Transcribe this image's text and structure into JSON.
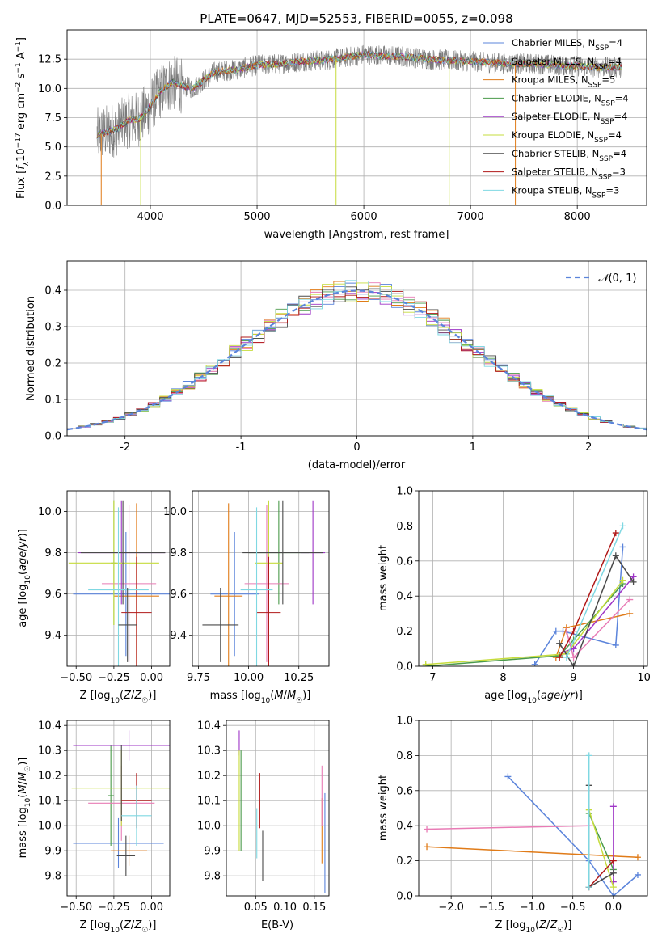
{
  "figure_title": "PLATE=0647, MJD=52553, FIBERID=0055, z=0.098",
  "colors": {
    "blue": "#5b84db",
    "orange": "#e07b18",
    "green": "#4a9a4a",
    "pink": "#e87bb5",
    "purple": "#9e35c6",
    "lime": "#c6dc3c",
    "dark": "#4a4a4a",
    "red": "#b01818",
    "cyan": "#7fd8e2",
    "gray": "#7a7a7a"
  },
  "chart_data": [
    {
      "id": "spectrum",
      "type": "line",
      "title": "PLATE=0647, MJD=52553, FIBERID=0055, z=0.098",
      "xlabel": "wavelength [Angstrom, rest frame]",
      "ylabel": "Flux [f_λ 10^-17 erg cm^-2 s^-1 A^-1]",
      "xlim": [
        3220,
        8650
      ],
      "ylim": [
        0,
        15
      ],
      "xticks": [
        4000,
        5000,
        6000,
        7000,
        8000
      ],
      "yticks": [
        0.0,
        2.5,
        5.0,
        7.5,
        10.0,
        12.5
      ],
      "data_continuum": {
        "x": [
          3500,
          3600,
          3700,
          3800,
          3900,
          4000,
          4100,
          4200,
          4300,
          4400,
          4600,
          4800,
          5000,
          5200,
          5400,
          5600,
          5800,
          6000,
          6200,
          6400,
          6600,
          6800,
          7000,
          7200,
          7400,
          7600,
          7800,
          8000,
          8200,
          8400
        ],
        "y": [
          6.0,
          6.3,
          6.6,
          7.3,
          7.4,
          8.5,
          9.8,
          10.5,
          10.2,
          10.0,
          11.4,
          11.6,
          12.0,
          12.1,
          12.3,
          12.4,
          12.6,
          12.9,
          12.8,
          12.7,
          12.5,
          12.4,
          12.3,
          12.2,
          12.1,
          12.1,
          12.0,
          11.9,
          11.8,
          11.8
        ]
      },
      "series": [
        {
          "name": "Chabrier MILES, N_SSP=4",
          "color": "#5b84db"
        },
        {
          "name": "Salpeter MILES, N_SSP=4",
          "color": "#e07b18"
        },
        {
          "name": "Kroupa MILES, N_SSP=5",
          "color": "#e07b18"
        },
        {
          "name": "Chabrier ELODIE, N_SSP=4",
          "color": "#4a9a4a"
        },
        {
          "name": "Salpeter ELODIE, N_SSP=4",
          "color": "#9e35c6"
        },
        {
          "name": "Kroupa ELODIE, N_SSP=4",
          "color": "#c6dc3c"
        },
        {
          "name": "Chabrier STELIB, N_SSP=4",
          "color": "#4a4a4a"
        },
        {
          "name": "Salpeter STELIB, N_SSP=3",
          "color": "#b01818"
        },
        {
          "name": "Kroupa STELIB, N_SSP=3",
          "color": "#7fd8e2"
        }
      ]
    },
    {
      "id": "residuals",
      "type": "bar",
      "xlabel": "(data-model)/error",
      "ylabel": "Normed distribution",
      "xlim": [
        -2.5,
        2.5
      ],
      "ylim": [
        0,
        0.48
      ],
      "xticks": [
        -2,
        -1,
        0,
        1,
        2
      ],
      "yticks": [
        0.0,
        0.1,
        0.2,
        0.3,
        0.4
      ],
      "legend": "𝒩(0,1)",
      "legend_position": "top-right",
      "bin_width": 0.1,
      "bin_start": -2.5,
      "reference_curve": "normal(0,1)"
    },
    {
      "id": "age_vs_Z",
      "type": "scatter",
      "xlabel": "Z [log10(Z/Z☉)]",
      "ylabel": "age  [log10(age/yr)]",
      "xlim": [
        -0.56,
        0.12
      ],
      "ylim": [
        9.25,
        10.1
      ],
      "xticks": [
        -0.5,
        -0.25,
        0.0
      ],
      "xticklabels": [
        "−0.50",
        "−0.25",
        "0.00"
      ],
      "yticks": [
        9.4,
        9.6,
        9.8,
        10.0
      ],
      "points": [
        {
          "color": "#5b84db",
          "x": -0.17,
          "xerr": 0.35,
          "y": 9.6,
          "yerr": 0.3
        },
        {
          "color": "#e07b18",
          "x": -0.1,
          "xerr": 0.15,
          "y": 9.59,
          "yerr": 0.45
        },
        {
          "color": "#4a9a4a",
          "x": -0.25,
          "xerr": 0.02,
          "y": 9.75,
          "yerr": 0.3
        },
        {
          "color": "#e87bb5",
          "x": -0.15,
          "xerr": 0.18,
          "y": 9.65,
          "yerr": 0.38
        },
        {
          "color": "#9e35c6",
          "x": -0.2,
          "xerr": 0.29,
          "y": 9.8,
          "yerr": 0.25
        },
        {
          "color": "#c6dc3c",
          "x": -0.25,
          "xerr": 0.3,
          "y": 9.75,
          "yerr": 0.3
        },
        {
          "color": "#4a4a4a",
          "x": -0.19,
          "xerr": 0.28,
          "y": 9.8,
          "yerr": 0.25
        },
        {
          "color": "#b01818",
          "x": -0.1,
          "xerr": 0.1,
          "y": 9.51,
          "yerr": 0.27
        },
        {
          "color": "#7fd8e2",
          "x": -0.22,
          "xerr": 0.2,
          "y": 9.62,
          "yerr": 0.4
        },
        {
          "color": "#4a4a4a",
          "x": -0.16,
          "xerr": 0.06,
          "y": 9.45,
          "yerr": 0.18
        }
      ]
    },
    {
      "id": "age_vs_mass",
      "type": "scatter",
      "xlabel": "mass [log10(M/M☉)]",
      "ylabel": "",
      "xlim": [
        9.72,
        10.4
      ],
      "ylim": [
        9.25,
        10.1
      ],
      "xticks": [
        9.75,
        10.0,
        10.25
      ],
      "xticklabels": [
        "9.75",
        "10.00",
        "10.25"
      ],
      "yticks": [
        9.4,
        9.6,
        9.8,
        10.0
      ],
      "points": [
        {
          "color": "#5b84db",
          "x": 9.93,
          "xerr": 0.12,
          "y": 9.6,
          "yerr": 0.3
        },
        {
          "color": "#e07b18",
          "x": 9.9,
          "xerr": 0.07,
          "y": 9.59,
          "yerr": 0.45
        },
        {
          "color": "#4a9a4a",
          "x": 10.15,
          "xerr": 0.15,
          "y": 9.8,
          "yerr": 0.25
        },
        {
          "color": "#e87bb5",
          "x": 10.09,
          "xerr": 0.11,
          "y": 9.65,
          "yerr": 0.38
        },
        {
          "color": "#9e35c6",
          "x": 10.32,
          "xerr": 0.06,
          "y": 9.8,
          "yerr": 0.25
        },
        {
          "color": "#c6dc3c",
          "x": 10.1,
          "xerr": 0.07,
          "y": 9.75,
          "yerr": 0.3
        },
        {
          "color": "#4a4a4a",
          "x": 10.17,
          "xerr": 0.2,
          "y": 9.8,
          "yerr": 0.25
        },
        {
          "color": "#b01818",
          "x": 10.1,
          "xerr": 0.06,
          "y": 9.51,
          "yerr": 0.27
        },
        {
          "color": "#7fd8e2",
          "x": 10.04,
          "xerr": 0.08,
          "y": 9.62,
          "yerr": 0.4
        },
        {
          "color": "#4a4a4a",
          "x": 9.86,
          "xerr": 0.09,
          "y": 9.45,
          "yerr": 0.18
        }
      ]
    },
    {
      "id": "mass_weight_vs_age",
      "type": "line",
      "xlabel": "age  [log10(age/yr)]",
      "ylabel": "mass weight",
      "xlim": [
        6.8,
        10.05
      ],
      "ylim": [
        0,
        1.0
      ],
      "xticks": [
        7,
        8,
        9,
        10
      ],
      "yticks": [
        0.0,
        0.2,
        0.4,
        0.6,
        0.8,
        1.0
      ],
      "series": [
        {
          "color": "#5b84db",
          "x": [
            8.45,
            8.75,
            8.85,
            9.6,
            9.7
          ],
          "y": [
            0.01,
            0.2,
            0.2,
            0.12,
            0.68
          ]
        },
        {
          "color": "#e07b18",
          "x": [
            8.75,
            8.9,
            9.8
          ],
          "y": [
            0.05,
            0.22,
            0.3
          ]
        },
        {
          "color": "#4a9a4a",
          "x": [
            6.9,
            8.8,
            9.0,
            9.7
          ],
          "y": [
            0.0,
            0.06,
            0.15,
            0.47
          ]
        },
        {
          "color": "#e87bb5",
          "x": [
            8.9,
            9.0,
            9.8
          ],
          "y": [
            0.2,
            0.05,
            0.38
          ]
        },
        {
          "color": "#9e35c6",
          "x": [
            8.85,
            9.0,
            9.85
          ],
          "y": [
            0.08,
            0.1,
            0.51
          ]
        },
        {
          "color": "#c6dc3c",
          "x": [
            6.9,
            8.9,
            9.7
          ],
          "y": [
            0.01,
            0.07,
            0.49
          ]
        },
        {
          "color": "#4a4a4a",
          "x": [
            8.8,
            9.0,
            9.6,
            9.85
          ],
          "y": [
            0.13,
            0.0,
            0.63,
            0.48
          ]
        },
        {
          "color": "#b01818",
          "x": [
            8.8,
            9.0,
            9.6
          ],
          "y": [
            0.05,
            0.2,
            0.76
          ]
        },
        {
          "color": "#7fd8e2",
          "x": [
            8.9,
            9.7
          ],
          "y": [
            0.05,
            0.8
          ]
        }
      ]
    },
    {
      "id": "mass_vs_Z",
      "type": "scatter",
      "xlabel": "Z [log10(Z/Z☉)]",
      "ylabel": "mass [log10(M/M☉)]",
      "xlim": [
        -0.56,
        0.12
      ],
      "ylim": [
        9.72,
        10.42
      ],
      "xticks": [
        -0.5,
        -0.25,
        0.0
      ],
      "xticklabels": [
        "−0.50",
        "−0.25",
        "0.00"
      ],
      "yticks": [
        9.8,
        9.9,
        10.0,
        10.1,
        10.2,
        10.3,
        10.4
      ],
      "points": [
        {
          "color": "#5b84db",
          "x": -0.22,
          "xerr": 0.3,
          "y": 9.93,
          "yerr": 0.1
        },
        {
          "color": "#e07b18",
          "x": -0.15,
          "xerr": 0.12,
          "y": 9.9,
          "yerr": 0.06
        },
        {
          "color": "#4a9a4a",
          "x": -0.27,
          "xerr": 0.02,
          "y": 10.12,
          "yerr": 0.2
        },
        {
          "color": "#e87bb5",
          "x": -0.2,
          "xerr": 0.22,
          "y": 10.09,
          "yerr": 0.15
        },
        {
          "color": "#9e35c6",
          "x": -0.15,
          "xerr": 0.37,
          "y": 10.32,
          "yerr": 0.06
        },
        {
          "color": "#c6dc3c",
          "x": -0.2,
          "xerr": 0.33,
          "y": 10.15,
          "yerr": 0.15
        },
        {
          "color": "#4a4a4a",
          "x": -0.2,
          "xerr": 0.28,
          "y": 10.17,
          "yerr": 0.15
        },
        {
          "color": "#b01818",
          "x": -0.1,
          "xerr": 0.1,
          "y": 10.1,
          "yerr": 0.11
        },
        {
          "color": "#7fd8e2",
          "x": -0.1,
          "xerr": 0.1,
          "y": 10.04,
          "yerr": 0.12
        },
        {
          "color": "#4a4a4a",
          "x": -0.17,
          "xerr": 0.06,
          "y": 9.88,
          "yerr": 0.08
        }
      ]
    },
    {
      "id": "mass_vs_ebv",
      "type": "scatter",
      "xlabel": "E(B-V)",
      "ylabel": "",
      "xlim": [
        0.0,
        0.175
      ],
      "ylim": [
        9.72,
        10.42
      ],
      "xticks": [
        0.05,
        0.1,
        0.15
      ],
      "xticklabels": [
        "0.05",
        "0.10",
        "0.15"
      ],
      "yticks": [
        9.8,
        9.9,
        10.0,
        10.1,
        10.2,
        10.3,
        10.4
      ],
      "points": [
        {
          "color": "#5b84db",
          "x": 0.168,
          "y": 9.93,
          "yerr": 0.2
        },
        {
          "color": "#e07b18",
          "x": 0.163,
          "y": 9.98,
          "yerr": 0.13
        },
        {
          "color": "#4a9a4a",
          "x": 0.025,
          "y": 10.1,
          "yerr": 0.2
        },
        {
          "color": "#e87bb5",
          "x": 0.163,
          "y": 10.12,
          "yerr": 0.12
        },
        {
          "color": "#9e35c6",
          "x": 0.022,
          "y": 10.33,
          "yerr": 0.05
        },
        {
          "color": "#c6dc3c",
          "x": 0.022,
          "y": 10.1,
          "yerr": 0.2
        },
        {
          "color": "#4a4a4a",
          "x": 0.062,
          "y": 9.88,
          "yerr": 0.1
        },
        {
          "color": "#b01818",
          "x": 0.057,
          "y": 10.1,
          "yerr": 0.11
        },
        {
          "color": "#7fd8e2",
          "x": 0.052,
          "y": 9.97,
          "yerr": 0.1
        }
      ]
    },
    {
      "id": "mass_weight_vs_Z",
      "type": "line",
      "xlabel": "Z [log10(Z/Z☉)]",
      "ylabel": "mass weight",
      "xlim": [
        -2.4,
        0.42
      ],
      "ylim": [
        0,
        1.0
      ],
      "xticks": [
        -2.0,
        -1.5,
        -1.0,
        -0.5,
        0.0
      ],
      "xticklabels": [
        "−2.0",
        "−1.5",
        "−1.0",
        "−0.5",
        "0.0"
      ],
      "yticks": [
        0.0,
        0.2,
        0.4,
        0.6,
        0.8,
        1.0
      ],
      "series": [
        {
          "color": "#5b84db",
          "x": [
            -1.3,
            -0.3,
            0.0,
            0.3
          ],
          "y": [
            0.68,
            0.2,
            0.0,
            0.12
          ]
        },
        {
          "color": "#e07b18",
          "x": [
            -2.3,
            0.3
          ],
          "y": [
            0.28,
            0.22
          ]
        },
        {
          "color": "#4a9a4a",
          "x": [
            -0.3,
            0.0
          ],
          "y": [
            0.47,
            0.15
          ]
        },
        {
          "color": "#e87bb5",
          "x": [
            -2.3,
            -0.3
          ],
          "y": [
            0.38,
            0.4
          ]
        },
        {
          "color": "#9e35c6",
          "x": [
            0.0,
            0.0
          ],
          "y": [
            0.08,
            0.51
          ]
        },
        {
          "color": "#c6dc3c",
          "x": [
            -0.3,
            0.0
          ],
          "y": [
            0.49,
            0.05
          ]
        },
        {
          "color": "#4a4a4a",
          "x": [
            -0.3,
            -0.3,
            0.0
          ],
          "y": [
            0.63,
            0.05,
            0.13
          ]
        },
        {
          "color": "#b01818",
          "x": [
            -0.3,
            0.0
          ],
          "y": [
            0.05,
            0.2
          ]
        },
        {
          "color": "#7fd8e2",
          "x": [
            -0.3,
            -0.3
          ],
          "y": [
            0.05,
            0.8
          ]
        }
      ]
    }
  ]
}
